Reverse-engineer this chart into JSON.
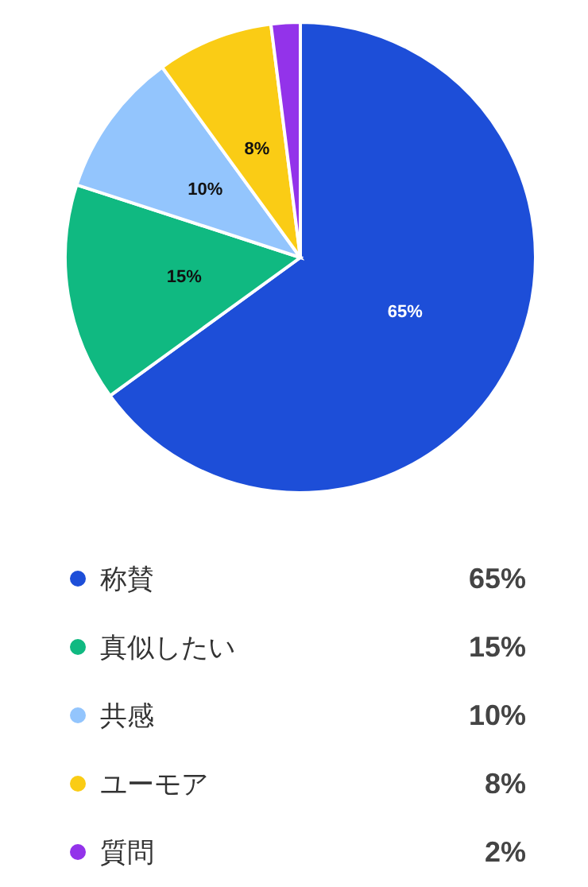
{
  "chart_data": {
    "type": "pie",
    "categories": [
      "称賛",
      "真似したい",
      "共感",
      "ユーモア",
      "質問"
    ],
    "values": [
      65,
      15,
      10,
      8,
      2
    ],
    "colors": [
      "#1d4ed8",
      "#10b981",
      "#93c5fd",
      "#facc15",
      "#9333ea"
    ],
    "value_labels": [
      "65%",
      "15%",
      "10%",
      "8%",
      "2%"
    ],
    "legend": "bottom"
  }
}
